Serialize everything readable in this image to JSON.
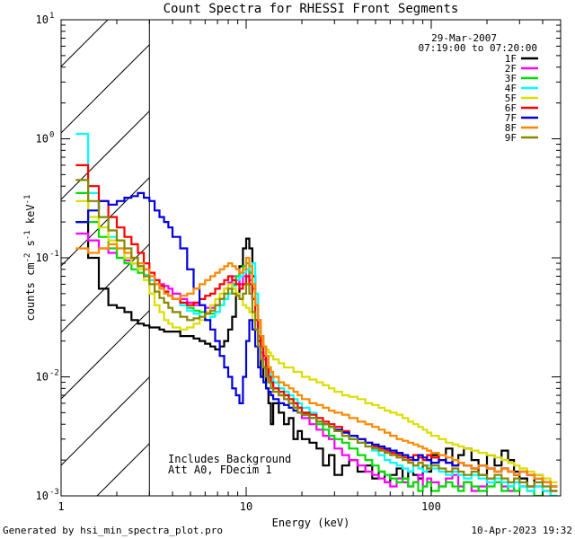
{
  "chart_data": {
    "type": "line",
    "title": "Count Spectra for RHESSI Front Segments",
    "xlabel": "Energy (keV)",
    "ylabel": "counts cm⁻² s⁻¹ keV⁻¹",
    "ylabel_parts": {
      "base": "counts cm",
      "e1": "-2",
      "mid": " s",
      "e2": "-1",
      "end": " keV",
      "e3": "-1"
    },
    "x_scale": "log",
    "y_scale": "log",
    "xlim": [
      1,
      500
    ],
    "ylim": [
      0.001,
      10
    ],
    "x_ticks": [
      {
        "value": 1,
        "label": "1"
      },
      {
        "value": 10,
        "label": "10"
      },
      {
        "value": 100,
        "label": "100"
      }
    ],
    "y_ticks": [
      {
        "value": 0.001,
        "base": "10",
        "exp": "-3"
      },
      {
        "value": 0.01,
        "base": "10",
        "exp": "-2"
      },
      {
        "value": 0.1,
        "base": "10",
        "exp": "-1"
      },
      {
        "value": 1,
        "base": "10",
        "exp": "0"
      },
      {
        "value": 10,
        "base": "10",
        "exp": "1"
      }
    ],
    "attenuator_shaded_max_keV": 3,
    "date": "29-Mar-2007",
    "time_range": "07:19:00 to 07:20:00",
    "annotation_lines": [
      "Includes Background",
      "Att A0, FDecim 1"
    ],
    "footer_left": "Generated by hsi_min_spectra_plot.pro",
    "footer_right": "10-Apr-2023 19:32",
    "energy_edges": [
      1.2,
      1.4,
      1.6,
      1.8,
      2.0,
      2.2,
      2.4,
      2.6,
      2.8,
      3.0,
      3.2,
      3.4,
      3.6,
      3.8,
      4.0,
      4.4,
      4.8,
      5.2,
      5.6,
      6.0,
      6.4,
      6.8,
      7.2,
      7.6,
      8.0,
      8.4,
      8.8,
      9.2,
      9.6,
      10.0,
      10.4,
      10.8,
      11.2,
      11.6,
      12.0,
      12.4,
      12.8,
      13.2,
      13.6,
      14.0,
      15.0,
      16.0,
      17.0,
      18.0,
      19.0,
      20.0,
      22.0,
      24.0,
      26.0,
      28.0,
      30.0,
      33.0,
      36.0,
      40.0,
      44.0,
      48.0,
      52.0,
      56.0,
      60.0,
      65.0,
      70.0,
      75.0,
      80.0,
      85.0,
      90.0,
      95.0,
      100.0,
      110.0,
      120.0,
      130.0,
      140.0,
      150.0,
      165.0,
      180.0,
      200.0,
      220.0,
      240.0,
      260.0,
      280.0,
      300.0,
      330.0,
      360.0,
      400.0,
      440.0,
      480.0
    ],
    "series": [
      {
        "name": "1F",
        "color": "#000000",
        "values": [
          0.2,
          0.1,
          0.055,
          0.04,
          0.038,
          0.035,
          0.03,
          0.028,
          0.027,
          0.026,
          0.026,
          0.025,
          0.024,
          0.024,
          0.024,
          0.022,
          0.022,
          0.021,
          0.02,
          0.019,
          0.018,
          0.017,
          0.018,
          0.02,
          0.025,
          0.032,
          0.05,
          0.085,
          0.12,
          0.145,
          0.12,
          0.07,
          0.04,
          0.02,
          0.01,
          0.012,
          0.008,
          0.006,
          0.004,
          0.006,
          0.005,
          0.004,
          0.0045,
          0.003,
          0.0035,
          0.003,
          0.0028,
          0.0025,
          0.0018,
          0.0022,
          0.0015,
          0.0018,
          0.002,
          0.0016,
          0.0018,
          0.0014,
          0.0016,
          0.0013,
          0.0015,
          0.0017,
          0.0014,
          0.0016,
          0.0015,
          0.0014,
          0.0018,
          0.0016,
          0.0022,
          0.002,
          0.0025,
          0.0018,
          0.0022,
          0.0025,
          0.002,
          0.0015,
          0.0022,
          0.0018,
          0.0024,
          0.002,
          0.0016,
          0.0014,
          0.0012,
          0.0015,
          0.0013,
          0.0011
        ]
      },
      {
        "name": "2F",
        "color": "#ff00ff",
        "values": [
          0.16,
          0.14,
          0.12,
          0.11,
          0.1,
          0.095,
          0.09,
          0.085,
          0.08,
          0.07,
          0.065,
          0.06,
          0.058,
          0.055,
          0.05,
          0.045,
          0.042,
          0.04,
          0.04,
          0.038,
          0.038,
          0.04,
          0.045,
          0.055,
          0.062,
          0.07,
          0.065,
          0.06,
          0.07,
          0.08,
          0.065,
          0.045,
          0.03,
          0.022,
          0.016,
          0.014,
          0.012,
          0.01,
          0.009,
          0.008,
          0.007,
          0.0065,
          0.006,
          0.0055,
          0.005,
          0.0045,
          0.004,
          0.0036,
          0.0032,
          0.003,
          0.0025,
          0.0022,
          0.002,
          0.0018,
          0.0016,
          0.0015,
          0.0014,
          0.0013,
          0.0012,
          0.0014,
          0.0013,
          0.0012,
          0.0013,
          0.0015,
          0.0012,
          0.0014,
          0.0013,
          0.0012,
          0.0014,
          0.0015,
          0.0012,
          0.0013,
          0.0011,
          0.0012,
          0.0014,
          0.0013,
          0.0012,
          0.0011,
          0.0013,
          0.0012,
          0.0011,
          0.0012,
          0.0011,
          0.001
        ]
      },
      {
        "name": "3F",
        "color": "#00dd00",
        "values": [
          0.35,
          0.2,
          0.15,
          0.12,
          0.1,
          0.09,
          0.08,
          0.075,
          0.07,
          0.065,
          0.06,
          0.055,
          0.05,
          0.048,
          0.045,
          0.04,
          0.038,
          0.036,
          0.035,
          0.034,
          0.034,
          0.035,
          0.04,
          0.045,
          0.05,
          0.06,
          0.07,
          0.075,
          0.085,
          0.09,
          0.075,
          0.055,
          0.04,
          0.03,
          0.022,
          0.018,
          0.015,
          0.012,
          0.01,
          0.009,
          0.008,
          0.007,
          0.0065,
          0.006,
          0.0055,
          0.005,
          0.0045,
          0.004,
          0.0036,
          0.0032,
          0.003,
          0.0028,
          0.0025,
          0.0022,
          0.002,
          0.0018,
          0.0016,
          0.0015,
          0.0014,
          0.0013,
          0.0014,
          0.0012,
          0.0013,
          0.0011,
          0.0012,
          0.0013,
          0.0011,
          0.0012,
          0.0013,
          0.0012,
          0.0011,
          0.0013,
          0.0012,
          0.0011,
          0.0012,
          0.0013,
          0.0011,
          0.0012,
          0.0011,
          0.0012,
          0.0011,
          0.001,
          0.0011,
          0.001
        ]
      },
      {
        "name": "4F",
        "color": "#00ffff",
        "values": [
          1.1,
          0.35,
          0.22,
          0.15,
          0.12,
          0.1,
          0.09,
          0.08,
          0.072,
          0.065,
          0.06,
          0.055,
          0.05,
          0.048,
          0.045,
          0.04,
          0.036,
          0.034,
          0.032,
          0.03,
          0.032,
          0.035,
          0.04,
          0.045,
          0.05,
          0.058,
          0.065,
          0.07,
          0.075,
          0.08,
          0.085,
          0.09,
          0.05,
          0.03,
          0.022,
          0.018,
          0.015,
          0.012,
          0.01,
          0.009,
          0.008,
          0.0075,
          0.007,
          0.0065,
          0.006,
          0.0055,
          0.005,
          0.0045,
          0.004,
          0.0038,
          0.0035,
          0.0032,
          0.003,
          0.0028,
          0.0026,
          0.0024,
          0.0022,
          0.002,
          0.0019,
          0.0018,
          0.0017,
          0.0016,
          0.0018,
          0.0017,
          0.0016,
          0.0018,
          0.0017,
          0.0016,
          0.0015,
          0.0016,
          0.0015,
          0.0014,
          0.0015,
          0.0014,
          0.0013,
          0.0014,
          0.0013,
          0.0012,
          0.0013,
          0.0012,
          0.0011,
          0.0012,
          0.0011,
          0.001
        ]
      },
      {
        "name": "5F",
        "color": "#dddd00",
        "values": [
          0.3,
          0.22,
          0.18,
          0.14,
          0.12,
          0.1,
          0.09,
          0.08,
          0.065,
          0.05,
          0.04,
          0.035,
          0.03,
          0.028,
          0.026,
          0.025,
          0.026,
          0.028,
          0.03,
          0.035,
          0.04,
          0.045,
          0.05,
          0.055,
          0.06,
          0.055,
          0.05,
          0.045,
          0.04,
          0.038,
          0.035,
          0.03,
          0.025,
          0.022,
          0.02,
          0.018,
          0.017,
          0.016,
          0.015,
          0.014,
          0.013,
          0.012,
          0.012,
          0.011,
          0.011,
          0.01,
          0.0095,
          0.009,
          0.0085,
          0.008,
          0.0075,
          0.007,
          0.0068,
          0.0065,
          0.006,
          0.0058,
          0.0055,
          0.0052,
          0.005,
          0.0048,
          0.0045,
          0.0042,
          0.004,
          0.0038,
          0.0036,
          0.0034,
          0.0032,
          0.003,
          0.0028,
          0.0027,
          0.0026,
          0.0025,
          0.0024,
          0.0023,
          0.0022,
          0.0021,
          0.002,
          0.0019,
          0.0018,
          0.0017,
          0.0016,
          0.0015,
          0.0014,
          0.0013
        ]
      },
      {
        "name": "6F",
        "color": "#ff0000",
        "values": [
          0.6,
          0.4,
          0.3,
          0.22,
          0.18,
          0.15,
          0.13,
          0.11,
          0.09,
          0.075,
          0.065,
          0.058,
          0.052,
          0.048,
          0.045,
          0.042,
          0.04,
          0.042,
          0.045,
          0.048,
          0.05,
          0.055,
          0.06,
          0.065,
          0.07,
          0.065,
          0.06,
          0.055,
          0.06,
          0.07,
          0.06,
          0.045,
          0.03,
          0.022,
          0.018,
          0.015,
          0.012,
          0.01,
          0.009,
          0.008,
          0.0075,
          0.007,
          0.0065,
          0.006,
          0.0055,
          0.005,
          0.0048,
          0.0045,
          0.0042,
          0.004,
          0.0038,
          0.0035,
          0.0032,
          0.003,
          0.0028,
          0.0026,
          0.0025,
          0.0024,
          0.0023,
          0.0022,
          0.0021,
          0.002,
          0.0022,
          0.0021,
          0.002,
          0.0022,
          0.0021,
          0.002,
          0.0019,
          0.0018,
          0.0019,
          0.0018,
          0.0017,
          0.0018,
          0.0017,
          0.0016,
          0.0017,
          0.0016,
          0.0015,
          0.0016,
          0.0015,
          0.0014,
          0.0013,
          0.0012
        ]
      },
      {
        "name": "7F",
        "color": "#0000dd",
        "values": [
          0.2,
          0.25,
          0.3,
          0.28,
          0.3,
          0.32,
          0.33,
          0.35,
          0.32,
          0.3,
          0.25,
          0.22,
          0.2,
          0.18,
          0.15,
          0.12,
          0.08,
          0.055,
          0.04,
          0.03,
          0.025,
          0.02,
          0.015,
          0.012,
          0.01,
          0.008,
          0.007,
          0.006,
          0.01,
          0.02,
          0.03,
          0.025,
          0.018,
          0.012,
          0.01,
          0.009,
          0.008,
          0.0075,
          0.007,
          0.0065,
          0.006,
          0.0058,
          0.0055,
          0.0052,
          0.005,
          0.0048,
          0.0045,
          0.0042,
          0.004,
          0.0038,
          0.0036,
          0.0034,
          0.0032,
          0.003,
          0.0028,
          0.0027,
          0.0026,
          0.0025,
          0.0024,
          0.0023,
          0.0022,
          0.0021,
          0.002,
          0.0022,
          0.0021,
          0.002,
          0.0019,
          0.002,
          0.0019,
          0.0018,
          0.0019,
          0.0018,
          0.0017,
          0.0018,
          0.0017,
          0.0016,
          0.0017,
          0.0016,
          0.0015,
          0.0016,
          0.0015,
          0.0014,
          0.0013,
          0.0012
        ]
      },
      {
        "name": "8F",
        "color": "#ff8800",
        "values": [
          0.12,
          0.11,
          0.12,
          0.13,
          0.12,
          0.11,
          0.1,
          0.09,
          0.08,
          0.07,
          0.06,
          0.055,
          0.05,
          0.048,
          0.045,
          0.048,
          0.05,
          0.055,
          0.06,
          0.065,
          0.07,
          0.075,
          0.08,
          0.085,
          0.09,
          0.085,
          0.08,
          0.075,
          0.08,
          0.1,
          0.085,
          0.06,
          0.04,
          0.03,
          0.022,
          0.018,
          0.015,
          0.012,
          0.011,
          0.01,
          0.009,
          0.0085,
          0.008,
          0.0075,
          0.007,
          0.0065,
          0.006,
          0.0058,
          0.0055,
          0.0052,
          0.005,
          0.0048,
          0.0045,
          0.0042,
          0.004,
          0.0038,
          0.0036,
          0.0034,
          0.0032,
          0.003,
          0.0029,
          0.0028,
          0.0027,
          0.0026,
          0.0025,
          0.0024,
          0.0023,
          0.0022,
          0.0021,
          0.002,
          0.0019,
          0.0018,
          0.0017,
          0.0018,
          0.0017,
          0.0016,
          0.0017,
          0.0016,
          0.0015,
          0.0016,
          0.0015,
          0.0014,
          0.0013,
          0.0012
        ]
      },
      {
        "name": "9F",
        "color": "#888800",
        "values": [
          0.45,
          0.3,
          0.22,
          0.17,
          0.14,
          0.12,
          0.1,
          0.085,
          0.07,
          0.06,
          0.052,
          0.046,
          0.042,
          0.038,
          0.035,
          0.032,
          0.03,
          0.031,
          0.032,
          0.034,
          0.036,
          0.04,
          0.045,
          0.05,
          0.055,
          0.05,
          0.048,
          0.045,
          0.05,
          0.06,
          0.05,
          0.035,
          0.025,
          0.018,
          0.014,
          0.012,
          0.01,
          0.009,
          0.008,
          0.0075,
          0.007,
          0.0065,
          0.006,
          0.0055,
          0.005,
          0.0048,
          0.0045,
          0.0042,
          0.004,
          0.0038,
          0.0035,
          0.0032,
          0.003,
          0.0028,
          0.0026,
          0.0025,
          0.0024,
          0.0023,
          0.0022,
          0.0021,
          0.002,
          0.0019,
          0.0018,
          0.0019,
          0.0018,
          0.0017,
          0.0018,
          0.0017,
          0.0016,
          0.0017,
          0.0016,
          0.0015,
          0.0016,
          0.0015,
          0.0014,
          0.0015,
          0.0014,
          0.0013,
          0.0014,
          0.0013,
          0.0012,
          0.0013,
          0.0012,
          0.0011
        ]
      }
    ]
  }
}
